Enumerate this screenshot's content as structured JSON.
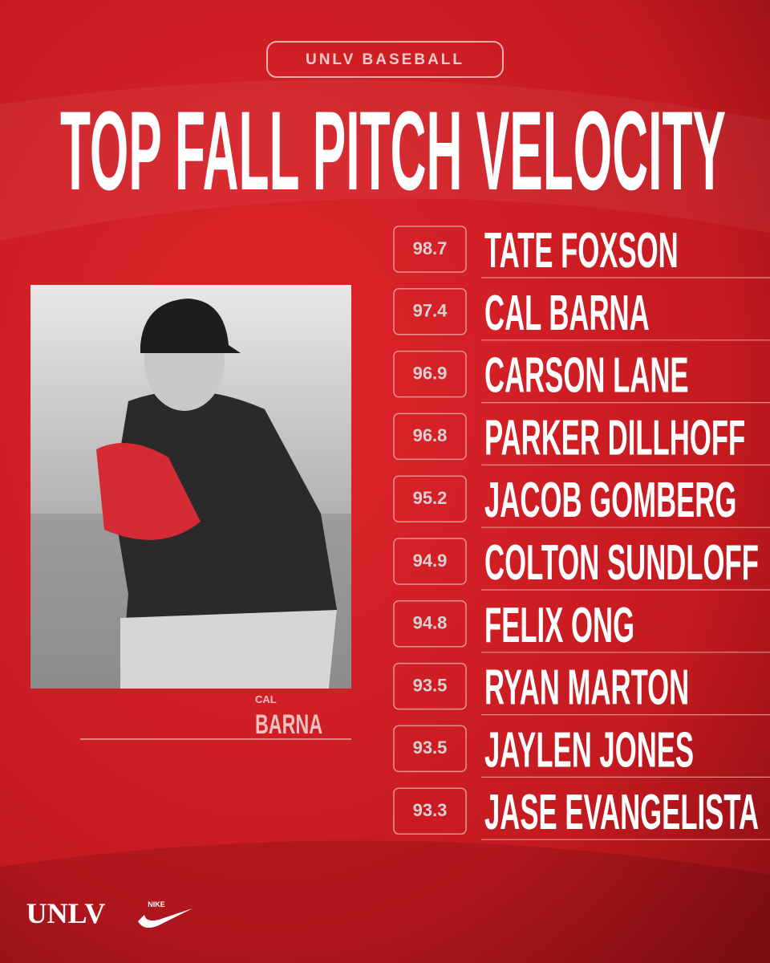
{
  "header": {
    "label": "UNLV BASEBALL",
    "title": "TOP FALL PITCH VELOCITY"
  },
  "leaders": [
    {
      "velocity": 98.7,
      "name": "TATE FOXSON"
    },
    {
      "velocity": 97.4,
      "name": "CAL BARNA"
    },
    {
      "velocity": 96.9,
      "name": "CARSON LANE"
    },
    {
      "velocity": 96.8,
      "name": "PARKER DILLHOFF"
    },
    {
      "velocity": 95.2,
      "name": "JACOB GOMBERG"
    },
    {
      "velocity": 94.9,
      "name": "COLTON SUNDLOFF"
    },
    {
      "velocity": 94.8,
      "name": "FELIX ONG"
    },
    {
      "velocity": 93.5,
      "name": "RYAN MARTON"
    },
    {
      "velocity": 93.5,
      "name": "JAYLEN JONES"
    },
    {
      "velocity": 93.3,
      "name": "JASE EVANGELISTA"
    }
  ],
  "photo": {
    "caption_first": "CAL",
    "caption_last": "BARNA"
  },
  "footer": {
    "school_logo": "UNLV",
    "sponsor_logo": "NIKE"
  }
}
